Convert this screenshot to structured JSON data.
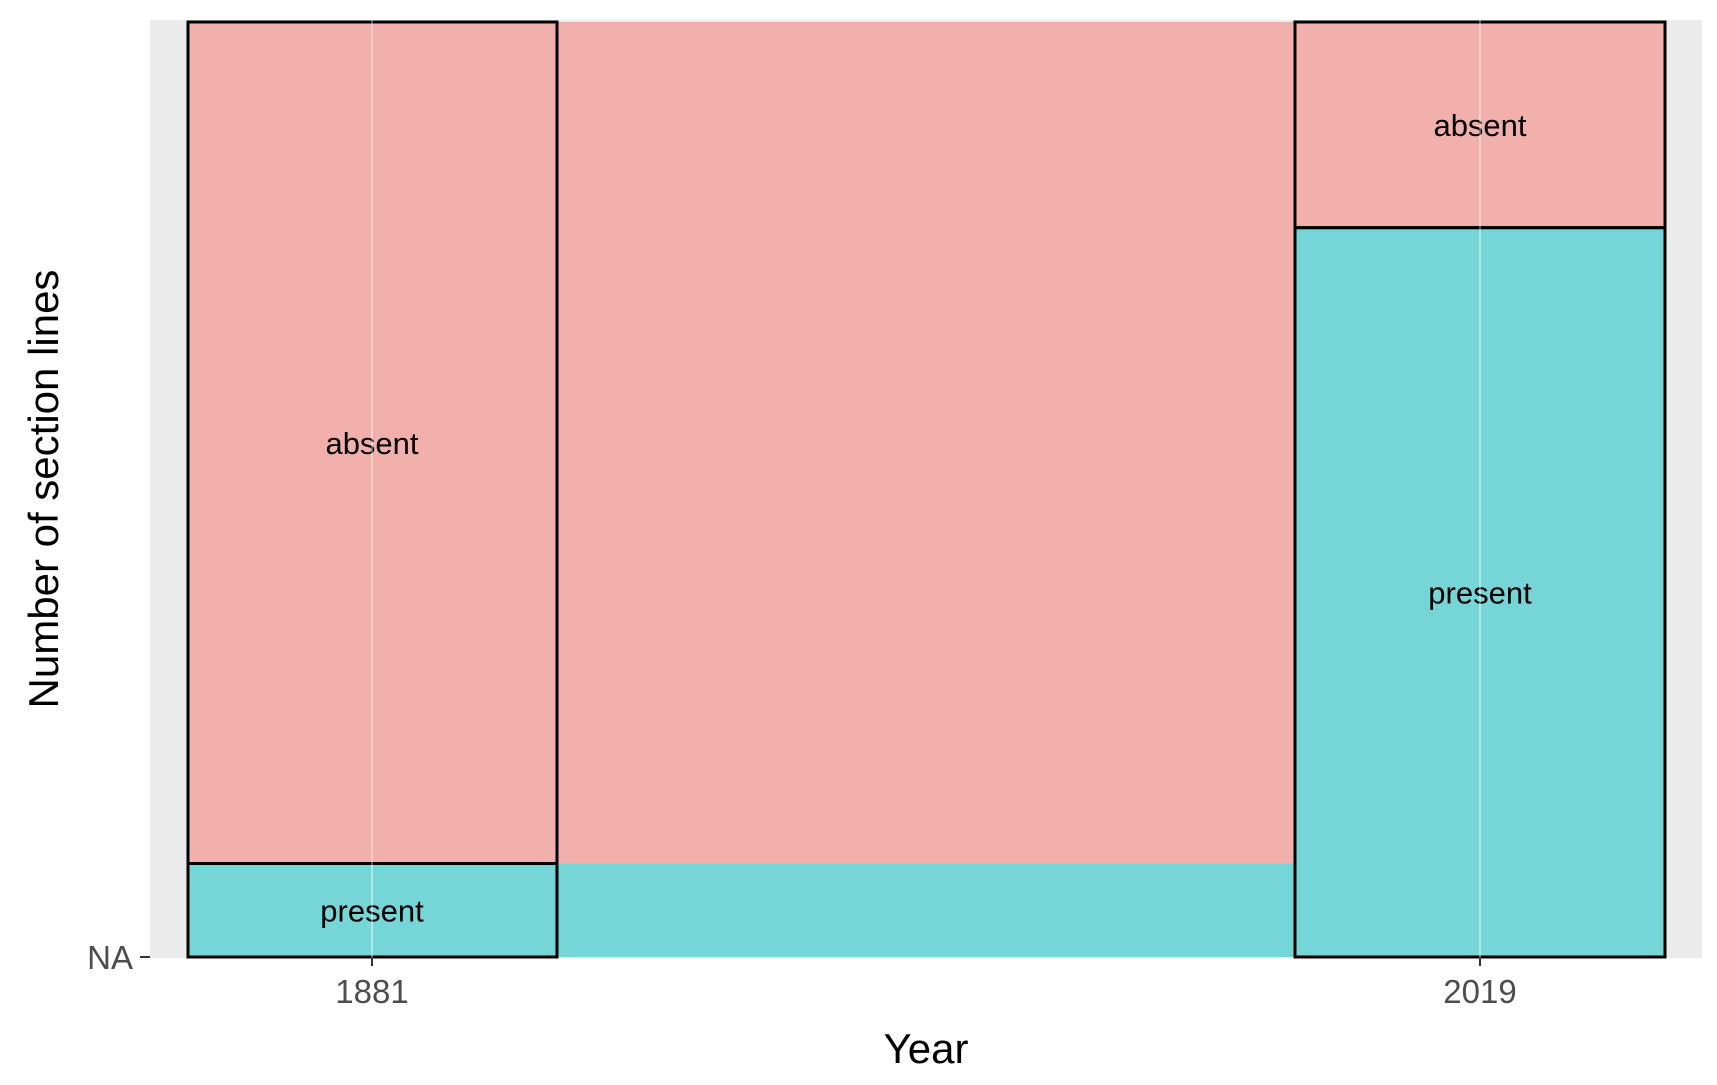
{
  "chart_data": {
    "type": "alluvial",
    "title": "",
    "xlabel": "Year",
    "ylabel": "Number of section lines",
    "x_categories": [
      "1881",
      "2019"
    ],
    "y_tick_labels": [
      "NA"
    ],
    "grid": true,
    "legend": "none",
    "strata": [
      {
        "axis": "1881",
        "category": "absent",
        "proportion": 0.9
      },
      {
        "axis": "1881",
        "category": "present",
        "proportion": 0.1
      },
      {
        "axis": "2019",
        "category": "absent",
        "proportion": 0.22
      },
      {
        "axis": "2019",
        "category": "present",
        "proportion": 0.78
      }
    ],
    "flows": [
      {
        "from": "absent",
        "to": "absent",
        "proportion": 0.22
      },
      {
        "from": "absent",
        "to": "present",
        "proportion": 0.68
      },
      {
        "from": "present",
        "to": "present",
        "proportion": 0.1
      }
    ],
    "colors": {
      "absent": "#F8766D",
      "present": "#00BFC4",
      "panel_background": "#EBEBEB",
      "gridline": "#FFFFFF"
    }
  }
}
